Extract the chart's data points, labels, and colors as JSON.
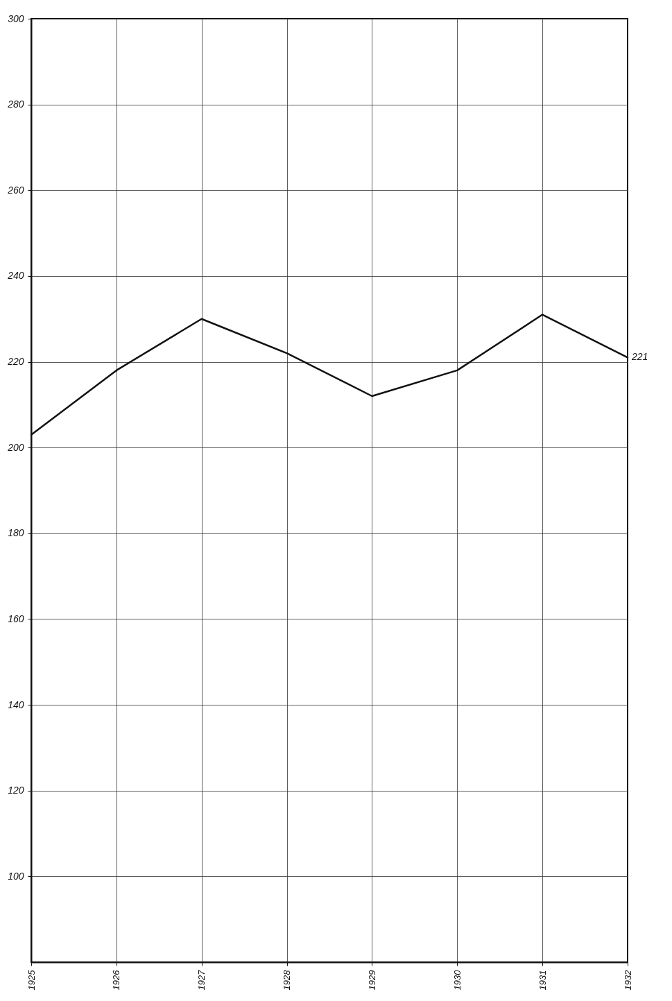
{
  "chart_data": {
    "type": "line",
    "categories": [
      "1925",
      "1926",
      "1927",
      "1928",
      "1929",
      "1930",
      "1931",
      "1932"
    ],
    "series": [
      {
        "color": "#111111",
        "values": [
          203,
          218,
          230,
          222,
          212,
          218,
          231,
          221
        ]
      }
    ],
    "ylim": [
      80,
      300
    ],
    "yticks": [
      100,
      120,
      140,
      160,
      180,
      200,
      220,
      240,
      260,
      280,
      300
    ],
    "grid": true,
    "annotations": [
      {
        "text": "221",
        "x": "1932",
        "y": 221
      }
    ]
  }
}
